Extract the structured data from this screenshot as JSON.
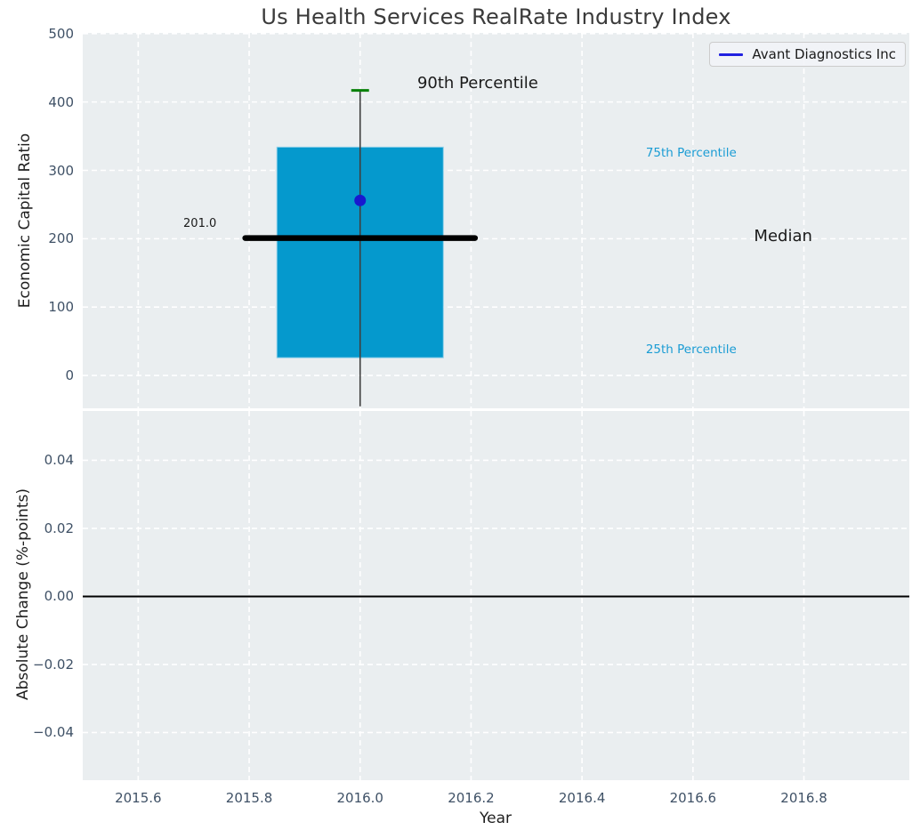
{
  "chart_data": {
    "type": "boxplot",
    "title": "Us Health Services RealRate Industry Index",
    "xlabel": "Year",
    "xlim": [
      2015.5,
      2016.99
    ],
    "xticks": [
      {
        "v": 2015.6,
        "label": "2015.6"
      },
      {
        "v": 2015.8,
        "label": "2015.8"
      },
      {
        "v": 2016.0,
        "label": "2016.0"
      },
      {
        "v": 2016.2,
        "label": "2016.2"
      },
      {
        "v": 2016.4,
        "label": "2016.4"
      },
      {
        "v": 2016.6,
        "label": "2016.6"
      },
      {
        "v": 2016.8,
        "label": "2016.8"
      }
    ],
    "legend": {
      "label": "Avant Diagnostics Inc",
      "line_color": "#2121e0",
      "position": "upper right"
    },
    "top_panel": {
      "ylabel": "Economic Capital Ratio",
      "ylim": [
        -48,
        501
      ],
      "yticks": [
        {
          "v": 0,
          "label": "0"
        },
        {
          "v": 100,
          "label": "100"
        },
        {
          "v": 200,
          "label": "200"
        },
        {
          "v": 300,
          "label": "300"
        },
        {
          "v": 400,
          "label": "400"
        },
        {
          "v": 500,
          "label": "500"
        }
      ],
      "box": {
        "x": 2016.0,
        "box_halfwidth": 0.15,
        "p10": -45,
        "q25": 26,
        "median": 201.0,
        "q75": 334,
        "p90": 417,
        "median_line_halfwidth": 0.207,
        "cap_halfwidth": 0.016
      },
      "company_point": {
        "series": "Avant Diagnostics Inc",
        "x": 2016.0,
        "y": 256
      },
      "annotations": [
        {
          "id": "median-value-label",
          "text": "201.0",
          "x": 2015.741,
          "y": 220,
          "anchor": "end",
          "size": 13,
          "color": "#1a1a1a"
        },
        {
          "id": "p90-label",
          "text": "90th Percentile",
          "x": 2016.103,
          "y": 426,
          "anchor": "start",
          "size": 18,
          "color": "#1a1a1a"
        },
        {
          "id": "p75-label",
          "text": "75th Percentile",
          "x": 2016.515,
          "y": 324,
          "anchor": "start",
          "size": 13.5,
          "color": "#1a9cd4"
        },
        {
          "id": "median-label",
          "text": "Median",
          "x": 2016.71,
          "y": 202,
          "anchor": "start",
          "size": 18,
          "color": "#1a1a1a"
        },
        {
          "id": "p25-label",
          "text": "25th Percentile",
          "x": 2016.515,
          "y": 36,
          "anchor": "start",
          "size": 13.5,
          "color": "#1a9cd4"
        }
      ]
    },
    "bottom_panel": {
      "ylabel": "Absolute Change (%-points)",
      "ylim": [
        -0.054,
        0.0545
      ],
      "yticks": [
        {
          "v": 0.04,
          "label": "0.04"
        },
        {
          "v": 0.02,
          "label": "0.02"
        },
        {
          "v": 0.0,
          "label": "0.00"
        },
        {
          "v": -0.02,
          "label": "−0.02"
        },
        {
          "v": -0.04,
          "label": "−0.04"
        }
      ],
      "zero_line": 0.0
    },
    "styles": {
      "axes_bg": "#eaeef0",
      "grid": "#ffffff",
      "box_fill": "#0599cd",
      "box_edge": "#8ecfe9",
      "whisker": "#3f3f3f",
      "cap": "#068106",
      "median_line": "#000000",
      "point": "#1818cf",
      "zero_line": "#000000",
      "tick_color": "#3f5166",
      "title_color": "#3a3a3a",
      "label_color": "#1f1f1f"
    }
  }
}
